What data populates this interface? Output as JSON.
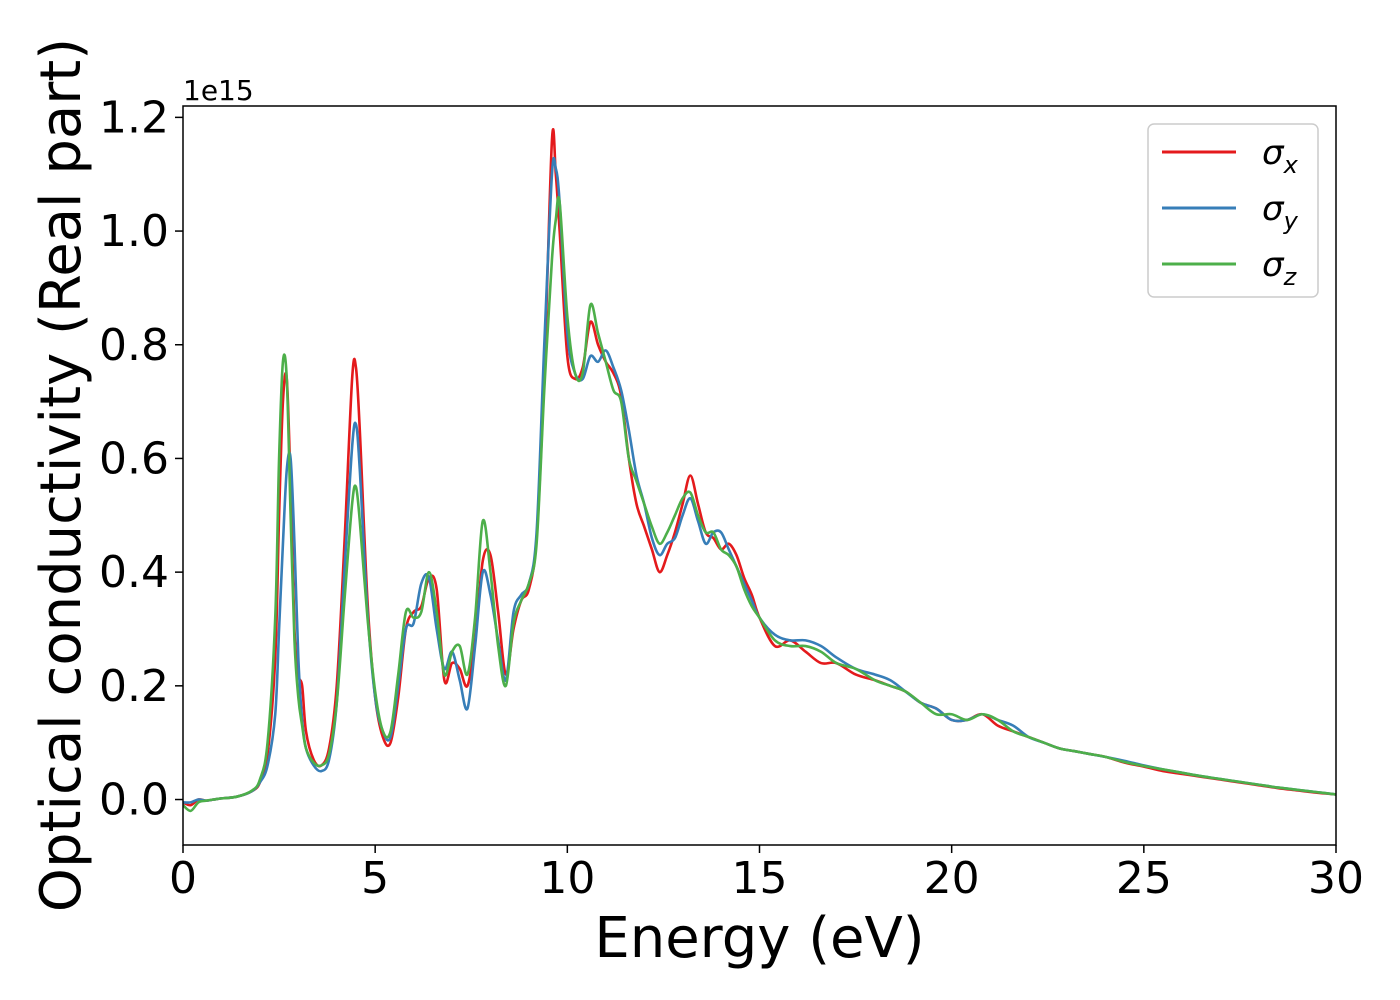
{
  "chart_data": {
    "type": "line",
    "xlabel": "Energy (eV)",
    "ylabel": "Optical conductivity (Real part)",
    "y_offset_label": "1e15",
    "xlim": [
      0,
      30
    ],
    "ylim": [
      -0.08,
      1.22
    ],
    "xticks": [
      0,
      5,
      10,
      15,
      20,
      25,
      30
    ],
    "xtick_labels": [
      "0",
      "5",
      "10",
      "15",
      "20",
      "25",
      "30"
    ],
    "yticks": [
      0.0,
      0.2,
      0.4,
      0.6,
      0.8,
      1.0,
      1.2
    ],
    "ytick_labels": [
      "0.0",
      "0.2",
      "0.4",
      "0.6",
      "0.8",
      "1.0",
      "1.2"
    ],
    "grid": false,
    "legend_position": "top-right",
    "x": [
      0,
      0.2,
      0.4,
      0.6,
      0.8,
      1.0,
      1.4,
      1.8,
      2.0,
      2.2,
      2.4,
      2.5,
      2.6,
      2.7,
      2.8,
      2.9,
      3.0,
      3.1,
      3.2,
      3.4,
      3.6,
      3.8,
      4.0,
      4.2,
      4.4,
      4.5,
      4.6,
      4.8,
      5.0,
      5.2,
      5.4,
      5.6,
      5.8,
      6.0,
      6.2,
      6.4,
      6.6,
      6.8,
      7.0,
      7.2,
      7.4,
      7.6,
      7.8,
      8.0,
      8.2,
      8.4,
      8.6,
      8.8,
      9.0,
      9.2,
      9.4,
      9.6,
      9.7,
      9.8,
      10.0,
      10.2,
      10.4,
      10.6,
      10.8,
      11.0,
      11.2,
      11.4,
      11.6,
      11.8,
      12.0,
      12.2,
      12.4,
      12.6,
      12.8,
      13.0,
      13.2,
      13.4,
      13.6,
      13.8,
      14.0,
      14.2,
      14.4,
      14.6,
      14.8,
      15.0,
      15.4,
      15.8,
      16.2,
      16.6,
      17.0,
      17.5,
      18.0,
      18.4,
      18.8,
      19.2,
      19.6,
      20.0,
      20.4,
      20.8,
      21.2,
      21.6,
      22.0,
      22.4,
      22.8,
      23.2,
      23.6,
      24.0,
      24.5,
      25.0,
      25.5,
      26.0,
      26.5,
      27.0,
      27.5,
      28.0,
      28.5,
      29.0,
      29.5,
      30.0
    ],
    "series": [
      {
        "name": "σ_x",
        "symbol": "σ",
        "sub": "x",
        "color": "#e41a1c",
        "values": [
          -0.005,
          -0.01,
          0.0,
          -0.002,
          0.0,
          0.002,
          0.005,
          0.015,
          0.03,
          0.08,
          0.25,
          0.5,
          0.7,
          0.74,
          0.55,
          0.3,
          0.22,
          0.2,
          0.12,
          0.07,
          0.06,
          0.09,
          0.2,
          0.45,
          0.74,
          0.76,
          0.65,
          0.35,
          0.18,
          0.11,
          0.1,
          0.18,
          0.3,
          0.33,
          0.34,
          0.39,
          0.37,
          0.21,
          0.24,
          0.23,
          0.2,
          0.28,
          0.42,
          0.43,
          0.33,
          0.22,
          0.3,
          0.35,
          0.37,
          0.46,
          0.75,
          1.16,
          1.1,
          1.0,
          0.78,
          0.74,
          0.76,
          0.84,
          0.8,
          0.77,
          0.75,
          0.71,
          0.6,
          0.52,
          0.48,
          0.44,
          0.4,
          0.43,
          0.47,
          0.52,
          0.57,
          0.52,
          0.47,
          0.46,
          0.44,
          0.45,
          0.43,
          0.39,
          0.36,
          0.32,
          0.27,
          0.28,
          0.26,
          0.24,
          0.24,
          0.22,
          0.21,
          0.2,
          0.19,
          0.17,
          0.16,
          0.14,
          0.14,
          0.15,
          0.13,
          0.12,
          0.11,
          0.1,
          0.09,
          0.085,
          0.08,
          0.075,
          0.065,
          0.058,
          0.05,
          0.045,
          0.04,
          0.035,
          0.03,
          0.025,
          0.02,
          0.016,
          0.012,
          0.009
        ]
      },
      {
        "name": "σ_y",
        "symbol": "σ",
        "sub": "y",
        "color": "#377eb8",
        "values": [
          -0.005,
          -0.005,
          0.0,
          -0.002,
          0.0,
          0.002,
          0.005,
          0.015,
          0.03,
          0.06,
          0.15,
          0.3,
          0.45,
          0.58,
          0.6,
          0.45,
          0.25,
          0.14,
          0.09,
          0.06,
          0.05,
          0.07,
          0.17,
          0.4,
          0.62,
          0.66,
          0.58,
          0.33,
          0.18,
          0.12,
          0.11,
          0.2,
          0.3,
          0.31,
          0.38,
          0.39,
          0.3,
          0.23,
          0.26,
          0.21,
          0.16,
          0.27,
          0.4,
          0.36,
          0.28,
          0.21,
          0.33,
          0.36,
          0.38,
          0.47,
          0.8,
          1.1,
          1.11,
          1.05,
          0.82,
          0.75,
          0.74,
          0.78,
          0.77,
          0.79,
          0.76,
          0.72,
          0.65,
          0.57,
          0.52,
          0.46,
          0.43,
          0.45,
          0.46,
          0.5,
          0.53,
          0.49,
          0.45,
          0.47,
          0.47,
          0.44,
          0.41,
          0.38,
          0.35,
          0.32,
          0.29,
          0.28,
          0.28,
          0.27,
          0.25,
          0.23,
          0.22,
          0.21,
          0.19,
          0.17,
          0.16,
          0.14,
          0.14,
          0.15,
          0.14,
          0.13,
          0.11,
          0.1,
          0.09,
          0.085,
          0.08,
          0.075,
          0.068,
          0.06,
          0.053,
          0.047,
          0.041,
          0.036,
          0.031,
          0.026,
          0.021,
          0.017,
          0.013,
          0.009
        ]
      },
      {
        "name": "σ_z",
        "symbol": "σ",
        "sub": "z",
        "color": "#4daf4a",
        "values": [
          -0.01,
          -0.02,
          -0.005,
          -0.002,
          0.0,
          0.002,
          0.005,
          0.016,
          0.035,
          0.1,
          0.32,
          0.6,
          0.77,
          0.74,
          0.5,
          0.28,
          0.18,
          0.13,
          0.09,
          0.065,
          0.06,
          0.08,
          0.17,
          0.35,
          0.52,
          0.55,
          0.49,
          0.32,
          0.19,
          0.12,
          0.12,
          0.22,
          0.33,
          0.32,
          0.33,
          0.4,
          0.33,
          0.22,
          0.26,
          0.27,
          0.22,
          0.32,
          0.49,
          0.4,
          0.27,
          0.2,
          0.31,
          0.35,
          0.38,
          0.45,
          0.72,
          0.95,
          1.02,
          1.05,
          0.85,
          0.75,
          0.75,
          0.87,
          0.82,
          0.77,
          0.72,
          0.7,
          0.6,
          0.56,
          0.52,
          0.48,
          0.45,
          0.47,
          0.5,
          0.53,
          0.54,
          0.5,
          0.47,
          0.47,
          0.44,
          0.43,
          0.41,
          0.37,
          0.34,
          0.32,
          0.28,
          0.27,
          0.27,
          0.26,
          0.24,
          0.23,
          0.21,
          0.2,
          0.19,
          0.17,
          0.15,
          0.15,
          0.14,
          0.15,
          0.14,
          0.12,
          0.11,
          0.1,
          0.09,
          0.085,
          0.08,
          0.075,
          0.066,
          0.059,
          0.053,
          0.047,
          0.041,
          0.036,
          0.031,
          0.026,
          0.021,
          0.017,
          0.013,
          0.009
        ]
      }
    ]
  }
}
